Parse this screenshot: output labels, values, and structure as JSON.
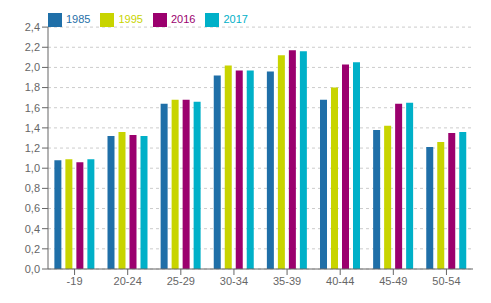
{
  "chart_data": {
    "type": "bar",
    "categories": [
      "-19",
      "20-24",
      "25-29",
      "30-34",
      "35-39",
      "40-44",
      "45-49",
      "50-54"
    ],
    "series": [
      {
        "name": "1985",
        "color": "#1f6fa8",
        "values": [
          1.08,
          1.32,
          1.64,
          1.92,
          1.96,
          1.68,
          1.38,
          1.21
        ]
      },
      {
        "name": "1995",
        "color": "#c8d400",
        "values": [
          1.09,
          1.36,
          1.68,
          2.02,
          2.12,
          1.8,
          1.42,
          1.26
        ]
      },
      {
        "name": "2016",
        "color": "#9b006e",
        "values": [
          1.06,
          1.33,
          1.68,
          1.97,
          2.17,
          2.03,
          1.64,
          1.35
        ]
      },
      {
        "name": "2017",
        "color": "#00b0c8",
        "values": [
          1.09,
          1.32,
          1.66,
          1.97,
          2.16,
          2.05,
          1.65,
          1.36
        ]
      }
    ],
    "ylim": [
      0,
      2.4
    ],
    "yticks": [
      {
        "value": 0.0,
        "label": "0,0"
      },
      {
        "value": 0.2,
        "label": "0,2"
      },
      {
        "value": 0.4,
        "label": "0,4"
      },
      {
        "value": 0.6,
        "label": "0,6"
      },
      {
        "value": 0.8,
        "label": "0,8"
      },
      {
        "value": 1.0,
        "label": "1,0"
      },
      {
        "value": 1.2,
        "label": "1,2"
      },
      {
        "value": 1.4,
        "label": "1,4"
      },
      {
        "value": 1.6,
        "label": "1,6"
      },
      {
        "value": 1.8,
        "label": "1,8"
      },
      {
        "value": 2.0,
        "label": "2,0"
      },
      {
        "value": 2.2,
        "label": "2,2"
      },
      {
        "value": 2.4,
        "label": "2,4"
      }
    ],
    "grid": true,
    "legend": "upper left"
  }
}
